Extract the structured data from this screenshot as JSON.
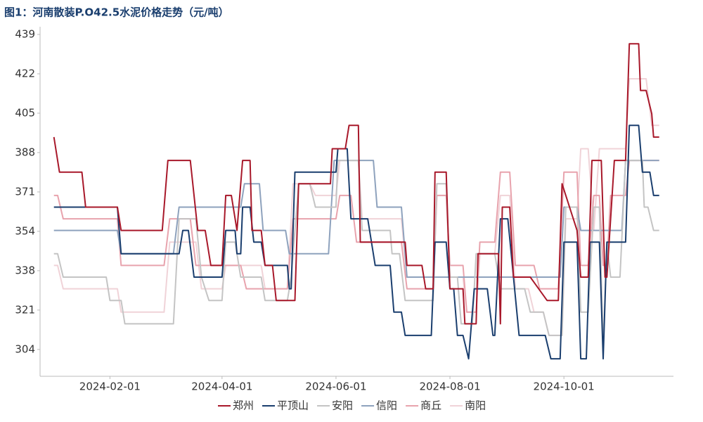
{
  "chart_data": {
    "type": "line",
    "title": "图1：河南散装P.O42.5水泥价格走势（元/吨）",
    "xlim": [
      "2024-01-01",
      "2024-11-23"
    ],
    "xticks": [
      "2024-02-01",
      "2024-04-01",
      "2024-06-01",
      "2024-08-01",
      "2024-10-01"
    ],
    "ylim": [
      292.5,
      441.7
    ],
    "yticks": [
      {
        "value": 304,
        "label": "304"
      },
      {
        "value": 320.875,
        "label": "321"
      },
      {
        "value": 337.75,
        "label": "338"
      },
      {
        "value": 354.625,
        "label": "354"
      },
      {
        "value": 371.5,
        "label": "371"
      },
      {
        "value": 388.375,
        "label": "388"
      },
      {
        "value": 405.25,
        "label": "405"
      },
      {
        "value": 422.125,
        "label": "422"
      },
      {
        "value": 439,
        "label": "439"
      }
    ],
    "legend": "bottom",
    "series": [
      {
        "name": "郑州",
        "color": "#a8182a",
        "x": [
          "2024-01-02",
          "2024-01-05",
          "2024-01-17",
          "2024-01-19",
          "2024-02-05",
          "2024-02-07",
          "2024-02-29",
          "2024-03-03",
          "2024-03-15",
          "2024-03-19",
          "2024-03-23",
          "2024-03-26",
          "2024-04-01",
          "2024-04-03",
          "2024-04-06",
          "2024-04-09",
          "2024-04-12",
          "2024-04-16",
          "2024-04-17",
          "2024-04-22",
          "2024-04-24",
          "2024-04-28",
          "2024-04-30",
          "2024-05-10",
          "2024-05-12",
          "2024-05-29",
          "2024-05-30",
          "2024-06-06",
          "2024-06-08",
          "2024-06-13",
          "2024-06-14",
          "2024-07-08",
          "2024-07-09",
          "2024-07-17",
          "2024-07-19",
          "2024-07-23",
          "2024-07-24",
          "2024-07-30",
          "2024-08-01",
          "2024-08-08",
          "2024-08-09",
          "2024-08-15",
          "2024-08-16",
          "2024-08-27",
          "2024-08-28",
          "2024-08-29",
          "2024-09-02",
          "2024-09-04",
          "2024-09-13",
          "2024-09-22",
          "2024-09-28",
          "2024-09-30",
          "2024-10-08",
          "2024-10-10",
          "2024-10-14",
          "2024-10-16",
          "2024-10-21",
          "2024-10-23",
          "2024-10-24",
          "2024-10-28",
          "2024-11-03",
          "2024-11-05",
          "2024-11-10",
          "2024-11-11",
          "2024-11-14",
          "2024-11-17",
          "2024-11-18",
          "2024-11-21"
        ],
        "values": [
          395,
          380,
          380,
          365,
          365,
          355,
          355,
          385,
          385,
          355,
          355,
          340,
          340,
          370,
          370,
          355,
          385,
          385,
          355,
          355,
          340,
          340,
          325,
          325,
          375,
          375,
          390,
          390,
          400,
          400,
          350,
          350,
          340,
          340,
          330,
          330,
          380,
          380,
          330,
          330,
          315,
          315,
          345,
          345,
          315,
          365,
          365,
          335,
          335,
          325,
          325,
          375,
          355,
          335,
          335,
          385,
          385,
          335,
          335,
          385,
          385,
          435,
          435,
          415,
          415,
          405,
          395,
          395
        ]
      },
      {
        "name": "平顶山",
        "color": "#1a3e6e",
        "x": [
          "2024-01-02",
          "2024-02-05",
          "2024-02-07",
          "2024-03-09",
          "2024-03-11",
          "2024-03-14",
          "2024-03-17",
          "2024-04-01",
          "2024-04-03",
          "2024-04-08",
          "2024-04-09",
          "2024-04-11",
          "2024-04-12",
          "2024-04-16",
          "2024-04-18",
          "2024-04-22",
          "2024-04-24",
          "2024-05-06",
          "2024-05-07",
          "2024-05-08",
          "2024-05-10",
          "2024-06-01",
          "2024-06-02",
          "2024-06-07",
          "2024-06-09",
          "2024-06-18",
          "2024-06-22",
          "2024-06-30",
          "2024-07-02",
          "2024-07-06",
          "2024-07-08",
          "2024-07-22",
          "2024-07-24",
          "2024-07-30",
          "2024-08-01",
          "2024-08-03",
          "2024-08-05",
          "2024-08-08",
          "2024-08-11",
          "2024-08-14",
          "2024-08-21",
          "2024-08-24",
          "2024-08-25",
          "2024-08-28",
          "2024-09-01",
          "2024-09-04",
          "2024-09-07",
          "2024-09-21",
          "2024-09-24",
          "2024-09-29",
          "2024-10-01",
          "2024-10-08",
          "2024-10-10",
          "2024-10-13",
          "2024-10-15",
          "2024-10-20",
          "2024-10-22",
          "2024-10-24",
          "2024-11-03",
          "2024-11-05",
          "2024-11-10",
          "2024-11-12",
          "2024-11-16",
          "2024-11-18",
          "2024-11-21"
        ],
        "values": [
          365,
          365,
          345,
          345,
          355,
          355,
          335,
          335,
          355,
          355,
          345,
          345,
          365,
          365,
          350,
          350,
          340,
          340,
          330,
          330,
          380,
          380,
          390,
          390,
          360,
          360,
          340,
          340,
          320,
          320,
          310,
          310,
          350,
          350,
          330,
          330,
          310,
          310,
          300,
          330,
          330,
          310,
          310,
          360,
          360,
          335,
          310,
          310,
          300,
          300,
          350,
          350,
          300,
          300,
          350,
          350,
          300,
          350,
          350,
          400,
          400,
          380,
          380,
          370,
          370
        ]
      },
      {
        "name": "安阳",
        "color": "#c4c4c4",
        "x": [
          "2024-01-02",
          "2024-01-04",
          "2024-01-07",
          "2024-01-30",
          "2024-02-01",
          "2024-02-07",
          "2024-02-09",
          "2024-03-06",
          "2024-03-09",
          "2024-03-18",
          "2024-03-21",
          "2024-03-25",
          "2024-04-01",
          "2024-04-03",
          "2024-04-08",
          "2024-04-11",
          "2024-04-22",
          "2024-04-24",
          "2024-05-06",
          "2024-05-08",
          "2024-05-12",
          "2024-05-18",
          "2024-05-21",
          "2024-06-01",
          "2024-06-02",
          "2024-06-13",
          "2024-06-15",
          "2024-06-30",
          "2024-07-01",
          "2024-07-05",
          "2024-07-08",
          "2024-07-23",
          "2024-07-25",
          "2024-07-30",
          "2024-08-01",
          "2024-08-05",
          "2024-08-07",
          "2024-08-13",
          "2024-08-15",
          "2024-08-25",
          "2024-08-28",
          "2024-09-10",
          "2024-09-13",
          "2024-09-20",
          "2024-09-23",
          "2024-09-30",
          "2024-10-02",
          "2024-10-08",
          "2024-10-10",
          "2024-10-14",
          "2024-10-17",
          "2024-10-20",
          "2024-10-22",
          "2024-10-24",
          "2024-10-26",
          "2024-10-31",
          "2024-11-03",
          "2024-11-12",
          "2024-11-13",
          "2024-11-15",
          "2024-11-18",
          "2024-11-21"
        ],
        "values": [
          345,
          345,
          335,
          335,
          325,
          325,
          315,
          315,
          360,
          360,
          335,
          325,
          325,
          350,
          350,
          335,
          335,
          325,
          325,
          335,
          375,
          375,
          365,
          365,
          385,
          385,
          355,
          355,
          345,
          345,
          325,
          325,
          375,
          375,
          335,
          335,
          315,
          315,
          345,
          345,
          330,
          330,
          320,
          320,
          310,
          310,
          365,
          365,
          320,
          320,
          365,
          365,
          305,
          350,
          335,
          335,
          385,
          385,
          365,
          365,
          355,
          355
        ]
      },
      {
        "name": "信阳",
        "color": "#8ea2bd",
        "x": [
          "2024-01-02",
          "2024-02-05",
          "2024-02-07",
          "2024-03-06",
          "2024-03-09",
          "2024-04-11",
          "2024-04-13",
          "2024-04-21",
          "2024-04-23",
          "2024-05-05",
          "2024-05-07",
          "2024-05-28",
          "2024-05-31",
          "2024-06-21",
          "2024-06-23",
          "2024-07-06",
          "2024-07-09",
          "2024-09-29",
          "2024-10-01",
          "2024-10-08",
          "2024-10-10",
          "2024-11-01",
          "2024-11-03",
          "2024-11-21"
        ],
        "values": [
          355,
          355,
          345,
          345,
          365,
          365,
          375,
          375,
          355,
          355,
          345,
          345,
          385,
          385,
          365,
          365,
          335,
          335,
          365,
          365,
          355,
          355,
          385,
          385
        ]
      },
      {
        "name": "商丘",
        "color": "#e8a3ad",
        "x": [
          "2024-01-02",
          "2024-01-04",
          "2024-01-07",
          "2024-02-05",
          "2024-02-07",
          "2024-03-01",
          "2024-03-04",
          "2024-03-15",
          "2024-03-18",
          "2024-04-11",
          "2024-04-14",
          "2024-05-06",
          "2024-05-09",
          "2024-06-01",
          "2024-06-03",
          "2024-06-09",
          "2024-06-12",
          "2024-07-06",
          "2024-07-09",
          "2024-07-23",
          "2024-07-25",
          "2024-07-30",
          "2024-08-01",
          "2024-08-08",
          "2024-08-10",
          "2024-08-15",
          "2024-08-17",
          "2024-08-25",
          "2024-08-28",
          "2024-09-02",
          "2024-09-05",
          "2024-09-15",
          "2024-09-18",
          "2024-09-28",
          "2024-10-01",
          "2024-10-08",
          "2024-10-10",
          "2024-10-14",
          "2024-10-17",
          "2024-10-20",
          "2024-10-22",
          "2024-10-24",
          "2024-10-26",
          "2024-11-03",
          "2024-11-05",
          "2024-11-21"
        ],
        "values": [
          370,
          370,
          360,
          360,
          340,
          340,
          360,
          360,
          340,
          340,
          330,
          330,
          360,
          360,
          370,
          370,
          350,
          350,
          330,
          330,
          370,
          370,
          340,
          340,
          320,
          320,
          350,
          350,
          380,
          380,
          340,
          340,
          330,
          330,
          380,
          380,
          340,
          340,
          370,
          370,
          340,
          340,
          370,
          370,
          385,
          385
        ]
      },
      {
        "name": "南阳",
        "color": "#f0d3d8",
        "x": [
          "2024-01-02",
          "2024-01-04",
          "2024-01-07",
          "2024-02-05",
          "2024-02-07",
          "2024-03-01",
          "2024-03-04",
          "2024-03-18",
          "2024-03-21",
          "2024-04-01",
          "2024-04-03",
          "2024-04-22",
          "2024-04-24",
          "2024-05-06",
          "2024-05-09",
          "2024-05-18",
          "2024-05-21",
          "2024-06-01",
          "2024-06-03",
          "2024-06-13",
          "2024-06-15",
          "2024-07-06",
          "2024-07-09",
          "2024-07-23",
          "2024-07-25",
          "2024-07-30",
          "2024-08-01",
          "2024-08-08",
          "2024-08-10",
          "2024-08-15",
          "2024-08-17",
          "2024-08-25",
          "2024-08-28",
          "2024-09-02",
          "2024-09-05",
          "2024-09-12",
          "2024-09-15",
          "2024-09-20",
          "2024-09-23",
          "2024-09-30",
          "2024-10-02",
          "2024-10-08",
          "2024-10-10",
          "2024-10-14",
          "2024-10-17",
          "2024-10-20",
          "2024-11-03",
          "2024-11-05",
          "2024-11-14",
          "2024-11-17",
          "2024-11-21"
        ],
        "values": [
          340,
          340,
          330,
          330,
          320,
          320,
          350,
          350,
          330,
          330,
          340,
          340,
          330,
          330,
          375,
          375,
          370,
          370,
          385,
          385,
          360,
          360,
          335,
          335,
          370,
          370,
          335,
          335,
          320,
          320,
          345,
          345,
          370,
          370,
          330,
          330,
          320,
          320,
          310,
          310,
          360,
          360,
          390,
          390,
          355,
          390,
          390,
          420,
          420,
          400,
          400
        ]
      }
    ]
  }
}
